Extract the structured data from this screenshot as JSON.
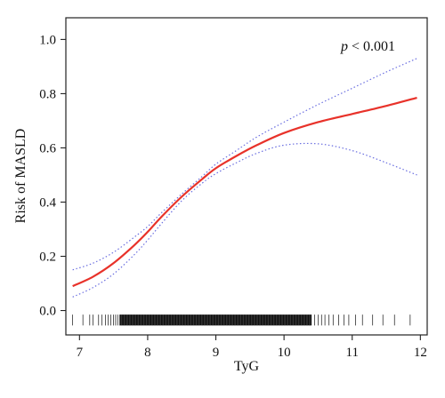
{
  "chart_data": {
    "type": "line",
    "xlabel": "TyG",
    "ylabel": "Risk of MASLD",
    "annotation": {
      "prefix": "p",
      "text": " < 0.001"
    },
    "xlim": [
      6.8,
      12.1
    ],
    "ylim": [
      -0.09,
      1.08
    ],
    "x_ticks": [
      7,
      8,
      9,
      10,
      11,
      12
    ],
    "y_ticks": [
      "0.0",
      "0.2",
      "0.4",
      "0.6",
      "0.8",
      "1.0"
    ],
    "grid": false,
    "legend": "none",
    "series": [
      {
        "role": "estimate",
        "color": "#e8322a",
        "x": [
          6.9,
          7.2,
          7.5,
          7.8,
          8.0,
          8.2,
          8.5,
          8.8,
          9.0,
          9.3,
          9.6,
          10.0,
          10.5,
          11.0,
          11.5,
          11.95
        ],
        "y": [
          0.09,
          0.125,
          0.175,
          0.24,
          0.29,
          0.345,
          0.42,
          0.485,
          0.525,
          0.57,
          0.61,
          0.655,
          0.695,
          0.725,
          0.755,
          0.785
        ]
      },
      {
        "role": "upper-ci",
        "color": "#6a6ee0",
        "x": [
          6.9,
          7.2,
          7.5,
          7.8,
          8.0,
          8.2,
          8.5,
          8.8,
          9.0,
          9.3,
          9.6,
          10.0,
          10.5,
          11.0,
          11.5,
          11.95
        ],
        "y": [
          0.15,
          0.175,
          0.215,
          0.27,
          0.31,
          0.36,
          0.43,
          0.495,
          0.54,
          0.59,
          0.64,
          0.695,
          0.76,
          0.82,
          0.88,
          0.93
        ]
      },
      {
        "role": "lower-ci",
        "color": "#6a6ee0",
        "x": [
          6.9,
          7.2,
          7.5,
          7.8,
          8.0,
          8.2,
          8.5,
          8.8,
          9.0,
          9.3,
          9.6,
          10.0,
          10.5,
          11.0,
          11.5,
          11.95
        ],
        "y": [
          0.05,
          0.085,
          0.135,
          0.205,
          0.26,
          0.32,
          0.405,
          0.47,
          0.505,
          0.545,
          0.58,
          0.61,
          0.615,
          0.59,
          0.545,
          0.5
        ]
      }
    ],
    "rug": {
      "color": "#111111",
      "dense_range": [
        7.6,
        10.4
      ],
      "values": [
        6.9,
        7.05,
        7.15,
        7.2,
        7.28,
        7.33,
        7.38,
        7.42,
        7.46,
        7.5,
        7.53,
        7.56,
        7.59,
        10.45,
        10.5,
        10.55,
        10.6,
        10.66,
        10.72,
        10.8,
        10.88,
        10.95,
        11.05,
        11.15,
        11.3,
        11.45,
        11.62,
        11.85
      ]
    }
  }
}
